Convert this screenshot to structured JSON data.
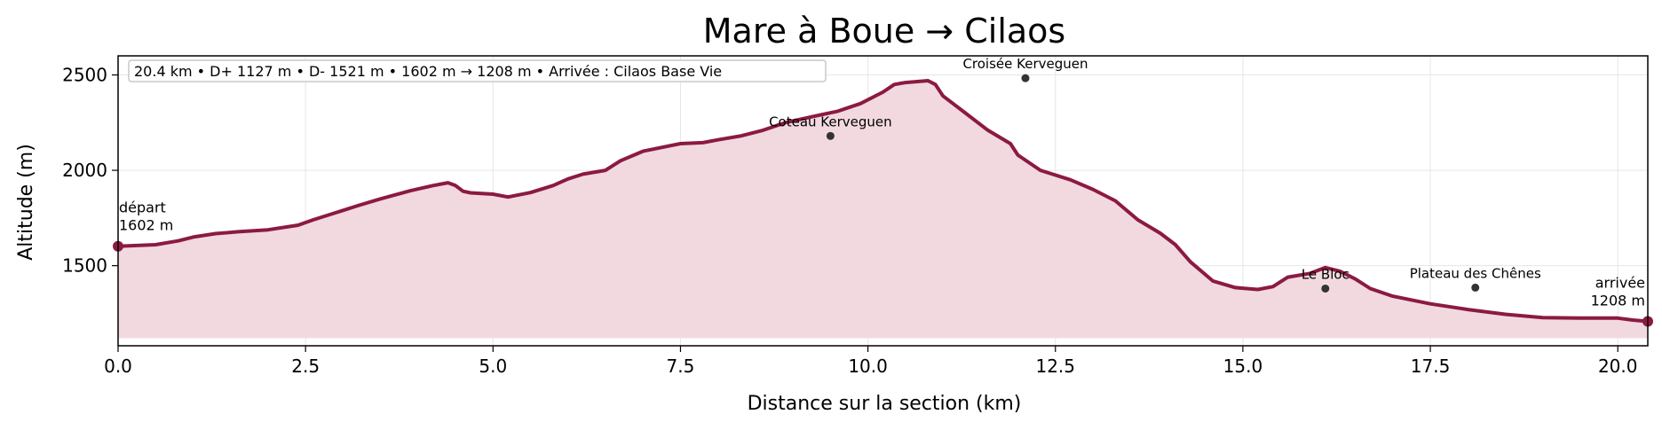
{
  "chart_data": {
    "type": "area",
    "title": "Mare à Boue → Cilaos",
    "xlabel": "Distance sur la section (km)",
    "ylabel": "Altitude (m)",
    "xlim": [
      0,
      20.4
    ],
    "ylim": [
      1080,
      2600
    ],
    "fill_base": 1120,
    "xticks": [
      0,
      2.5,
      5,
      7.5,
      10,
      12.5,
      15,
      17.5,
      20
    ],
    "xtick_labels": [
      "0.0",
      "2.5",
      "5.0",
      "7.5",
      "10.0",
      "12.5",
      "15.0",
      "17.5",
      "20.0"
    ],
    "yticks": [
      1500,
      2000,
      2500
    ],
    "ytick_labels": [
      "1500",
      "2000",
      "2500"
    ],
    "grid": true,
    "line_color": "#8b1a42",
    "fill_color": "#f2d9e0",
    "summary": "20.4 km • D+ 1127 m • D- 1521 m • 1602 m → 1208 m • Arrivée : Cilaos Base Vie",
    "series": [
      {
        "x": [
          0,
          0.5,
          0.8,
          1.0,
          1.3,
          1.6,
          2.0,
          2.4,
          2.6,
          3.0,
          3.2,
          3.5,
          3.9,
          4.2,
          4.4,
          4.5,
          4.6,
          4.7,
          5.0,
          5.2,
          5.5,
          5.8,
          6.0,
          6.2,
          6.5,
          6.7,
          7.0,
          7.5,
          7.8,
          8.0,
          8.3,
          8.6,
          8.9,
          9.3,
          9.6,
          9.9,
          10.2,
          10.35,
          10.5,
          10.8,
          10.9,
          11.0,
          11.3,
          11.6,
          11.9,
          12.0,
          12.3,
          12.7,
          13.0,
          13.3,
          13.6,
          13.9,
          14.1,
          14.3,
          14.6,
          14.9,
          15.2,
          15.4,
          15.6,
          15.9,
          16.1,
          16.3,
          16.5,
          16.7,
          17.0,
          17.5,
          18.0,
          18.5,
          19.0,
          19.5,
          20.0,
          20.2,
          20.4
        ],
        "y": [
          1602,
          1610,
          1630,
          1650,
          1668,
          1678,
          1688,
          1712,
          1740,
          1790,
          1815,
          1850,
          1893,
          1920,
          1935,
          1920,
          1890,
          1882,
          1875,
          1860,
          1883,
          1920,
          1955,
          1980,
          2000,
          2050,
          2100,
          2140,
          2145,
          2160,
          2180,
          2210,
          2250,
          2285,
          2310,
          2350,
          2410,
          2450,
          2460,
          2470,
          2450,
          2390,
          2300,
          2210,
          2140,
          2080,
          2000,
          1950,
          1900,
          1840,
          1740,
          1670,
          1610,
          1520,
          1420,
          1385,
          1375,
          1390,
          1440,
          1460,
          1490,
          1470,
          1430,
          1380,
          1340,
          1300,
          1270,
          1245,
          1228,
          1225,
          1225,
          1215,
          1208
        ]
      }
    ],
    "points": [
      {
        "label": "Coteau Kerveguen",
        "x": 9.5,
        "y": 2180
      },
      {
        "label": "Croisée Kerveguen",
        "x": 12.1,
        "y": 2483
      },
      {
        "label": "Le Bloc",
        "x": 16.1,
        "y": 1380
      },
      {
        "label": "Plateau des Chênes",
        "x": 18.1,
        "y": 1385
      }
    ],
    "endpoints": [
      {
        "label": "départ",
        "sub": "1602 m",
        "x": 0,
        "y": 1602
      },
      {
        "label": "arrivée",
        "sub": "1208 m",
        "x": 20.4,
        "y": 1208
      }
    ]
  }
}
